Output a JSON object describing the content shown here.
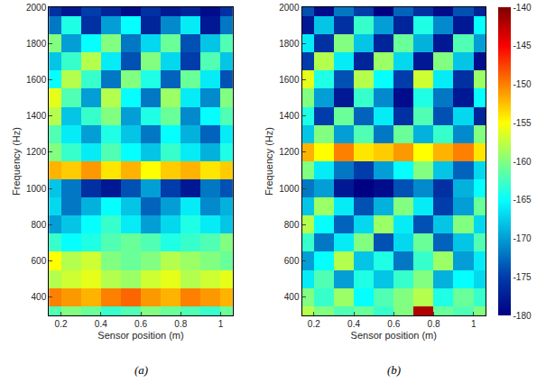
{
  "chart_data": [
    {
      "type": "heatmap",
      "panel_label": "(a)",
      "color": "Jet",
      "x_label": "Sensor position (m)",
      "y_label": "Frequency (Hz)",
      "x": [
        0.15,
        0.25,
        0.35,
        0.45,
        0.55,
        0.65,
        0.75,
        0.85,
        0.95,
        1.05
      ],
      "y": [
        300,
        400,
        500,
        600,
        700,
        800,
        900,
        1000,
        1100,
        1200,
        1300,
        1400,
        1500,
        1600,
        1700,
        1800,
        1900,
        2000
      ],
      "xlim": [
        0.14,
        1.06
      ],
      "xticks": [
        0.2,
        0.4,
        0.6,
        0.8,
        1
      ],
      "ylim": [
        300,
        2000
      ],
      "yticks": [
        400,
        600,
        800,
        1000,
        1200,
        1400,
        1600,
        1800,
        2000
      ],
      "zlim": [
        -180,
        -140
      ],
      "z": [
        [
          -162,
          -160,
          -161,
          -163,
          -162,
          -160,
          -161,
          -162,
          -163,
          -161
        ],
        [
          -150,
          -151,
          -152,
          -150,
          -149,
          -151,
          -152,
          -150,
          -151,
          -152
        ],
        [
          -158,
          -157,
          -156,
          -158,
          -159,
          -157,
          -156,
          -158,
          -157,
          -156
        ],
        [
          -155,
          -158,
          -157,
          -160,
          -161,
          -160,
          -158,
          -159,
          -160,
          -161
        ],
        [
          -163,
          -165,
          -164,
          -162,
          -161,
          -162,
          -164,
          -163,
          -162,
          -160
        ],
        [
          -170,
          -168,
          -165,
          -163,
          -166,
          -170,
          -167,
          -164,
          -166,
          -168
        ],
        [
          -167,
          -172,
          -169,
          -165,
          -168,
          -173,
          -170,
          -166,
          -171,
          -169
        ],
        [
          -168,
          -172,
          -176,
          -178,
          -174,
          -170,
          -175,
          -178,
          -172,
          -174
        ],
        [
          -152,
          -153,
          -151,
          -154,
          -152,
          -155,
          -153,
          -152,
          -154,
          -153
        ],
        [
          -160,
          -163,
          -166,
          -162,
          -165,
          -168,
          -163,
          -166,
          -169,
          -164
        ],
        [
          -162,
          -166,
          -170,
          -164,
          -168,
          -172,
          -165,
          -169,
          -173,
          -166
        ],
        [
          -158,
          -168,
          -163,
          -160,
          -170,
          -164,
          -161,
          -171,
          -165,
          -162
        ],
        [
          -156,
          -162,
          -170,
          -158,
          -165,
          -172,
          -159,
          -166,
          -171,
          -160
        ],
        [
          -165,
          -158,
          -163,
          -172,
          -160,
          -164,
          -173,
          -161,
          -166,
          -174
        ],
        [
          -168,
          -163,
          -158,
          -166,
          -174,
          -160,
          -167,
          -175,
          -162,
          -168
        ],
        [
          -160,
          -170,
          -165,
          -160,
          -172,
          -167,
          -161,
          -174,
          -168,
          -162
        ],
        [
          -172,
          -164,
          -176,
          -170,
          -165,
          -177,
          -171,
          -166,
          -178,
          -172
        ],
        [
          -176,
          -178,
          -175,
          -177,
          -179,
          -176,
          -178,
          -177,
          -179,
          -176
        ]
      ]
    },
    {
      "type": "heatmap",
      "panel_label": "(b)",
      "color": "Jet",
      "x_label": "Sensor position (m)",
      "y_label": "Frequency (Hz)",
      "x": [
        0.15,
        0.25,
        0.35,
        0.45,
        0.55,
        0.65,
        0.75,
        0.85,
        0.95,
        1.05
      ],
      "y": [
        300,
        400,
        500,
        600,
        700,
        800,
        900,
        1000,
        1100,
        1200,
        1300,
        1400,
        1500,
        1600,
        1700,
        1800,
        1900,
        2000
      ],
      "xlim": [
        0.14,
        1.06
      ],
      "xticks": [
        0.2,
        0.4,
        0.6,
        0.8,
        1
      ],
      "ylim": [
        300,
        2000
      ],
      "yticks": [
        400,
        600,
        800,
        1000,
        1200,
        1400,
        1600,
        1800,
        2000
      ],
      "zlim": [
        -180,
        -140
      ],
      "zticks": [
        -180,
        -175,
        -170,
        -165,
        -160,
        -155,
        -150,
        -145,
        -140
      ],
      "z": [
        [
          -158,
          -160,
          -162,
          -161,
          -163,
          -160,
          -142,
          -161,
          -162,
          -160
        ],
        [
          -160,
          -163,
          -159,
          -165,
          -162,
          -160,
          -158,
          -164,
          -161,
          -163
        ],
        [
          -166,
          -162,
          -170,
          -164,
          -168,
          -163,
          -160,
          -169,
          -165,
          -167
        ],
        [
          -170,
          -165,
          -158,
          -168,
          -164,
          -172,
          -163,
          -159,
          -170,
          -166
        ],
        [
          -163,
          -172,
          -166,
          -160,
          -174,
          -167,
          -161,
          -173,
          -168,
          -162
        ],
        [
          -158,
          -165,
          -173,
          -167,
          -159,
          -166,
          -174,
          -168,
          -160,
          -167
        ],
        [
          -168,
          -159,
          -166,
          -174,
          -169,
          -160,
          -166,
          -175,
          -170,
          -161
        ],
        [
          -172,
          -170,
          -178,
          -180,
          -179,
          -174,
          -171,
          -176,
          -169,
          -165
        ],
        [
          -160,
          -166,
          -172,
          -175,
          -170,
          -165,
          -160,
          -168,
          -173,
          -167
        ],
        [
          -152,
          -155,
          -150,
          -154,
          -153,
          -151,
          -155,
          -152,
          -150,
          -154
        ],
        [
          -168,
          -160,
          -170,
          -162,
          -172,
          -161,
          -169,
          -163,
          -171,
          -160
        ],
        [
          -164,
          -175,
          -161,
          -173,
          -166,
          -176,
          -162,
          -174,
          -167,
          -177
        ],
        [
          -160,
          -170,
          -178,
          -163,
          -171,
          -179,
          -164,
          -172,
          -178,
          -165
        ],
        [
          -156,
          -164,
          -174,
          -158,
          -165,
          -175,
          -157,
          -166,
          -176,
          -159
        ],
        [
          -175,
          -158,
          -166,
          -177,
          -159,
          -167,
          -178,
          -160,
          -168,
          -179
        ],
        [
          -166,
          -176,
          -160,
          -168,
          -177,
          -161,
          -169,
          -178,
          -162,
          -170
        ],
        [
          -178,
          -168,
          -176,
          -163,
          -170,
          -177,
          -164,
          -171,
          -178,
          -165
        ],
        [
          -174,
          -179,
          -172,
          -175,
          -180,
          -173,
          -176,
          -179,
          -174,
          -177
        ]
      ]
    }
  ]
}
